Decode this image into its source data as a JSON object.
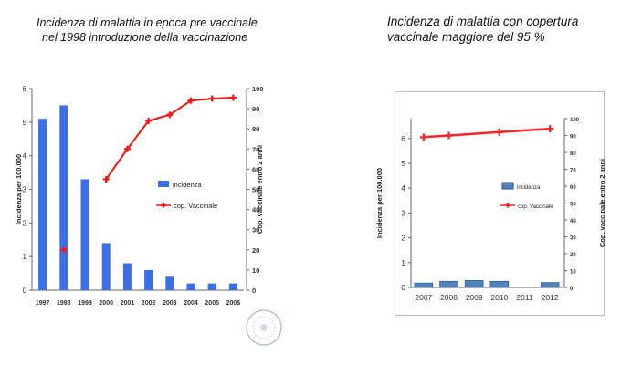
{
  "titles": {
    "left": [
      "Incidenza di malattia in  epoca pre vaccinale",
      "nel 1998 introduzione della vaccinazione"
    ],
    "right": [
      "Incidenza di malattia con copertura",
      "vaccinale maggiore del  95 %"
    ]
  },
  "colors": {
    "bar": "#3a6fe8",
    "line": "#ff1111",
    "bar_right": "#4f81bd",
    "line_right": "#ff2222"
  },
  "chart_data": [
    {
      "type": "bar",
      "categories": [
        "1997",
        "1998",
        "1999",
        "2000",
        "2001",
        "2002",
        "2003",
        "2004",
        "2005",
        "2006"
      ],
      "series": [
        {
          "name": "incidenza",
          "type": "bar",
          "axis": "left",
          "values": [
            5.1,
            5.5,
            3.3,
            1.4,
            0.8,
            0.6,
            0.4,
            0.2,
            0.2,
            0.2
          ]
        },
        {
          "name": "cop. Vaccinale",
          "type": "line",
          "axis": "right",
          "values": [
            null,
            20,
            null,
            55,
            70,
            84,
            87,
            94,
            95,
            95.5
          ]
        }
      ],
      "ylabel": "Incidenza per 100.000",
      "y2label": "Cop. vaccinale entro 2 anni",
      "ylim": [
        0,
        6
      ],
      "y2lim": [
        0,
        100
      ],
      "yticks": [
        "0",
        "1",
        "2",
        "3",
        "4",
        "5",
        "6"
      ],
      "y2ticks": [
        "0",
        "10",
        "20",
        "30",
        "40",
        "50",
        "60",
        "70",
        "80",
        "90",
        "100"
      ],
      "legend": "center-right"
    },
    {
      "type": "bar",
      "categories": [
        "2007",
        "2008",
        "2009",
        "2010",
        "2011",
        "2012"
      ],
      "series": [
        {
          "name": "incidenza",
          "type": "bar",
          "axis": "left",
          "values": [
            0.18,
            0.25,
            0.28,
            0.25,
            0,
            0.2
          ]
        },
        {
          "name": "cop. Vaccinale",
          "type": "line",
          "axis": "right",
          "values": [
            89,
            90,
            null,
            92,
            null,
            94
          ]
        }
      ],
      "ylabel": "Incidenza per 100.000",
      "y2label": "Cop. vaccinale entro 2 anni",
      "ylim": [
        0,
        6.8
      ],
      "y2lim": [
        0,
        100
      ],
      "yticks": [
        "0",
        "1",
        "2",
        "3",
        "4",
        "5",
        "6"
      ],
      "y2ticks": [
        "0",
        "10",
        "20",
        "30",
        "40",
        "50",
        "60",
        "70",
        "80",
        "90",
        "100"
      ],
      "legend": "center"
    }
  ]
}
